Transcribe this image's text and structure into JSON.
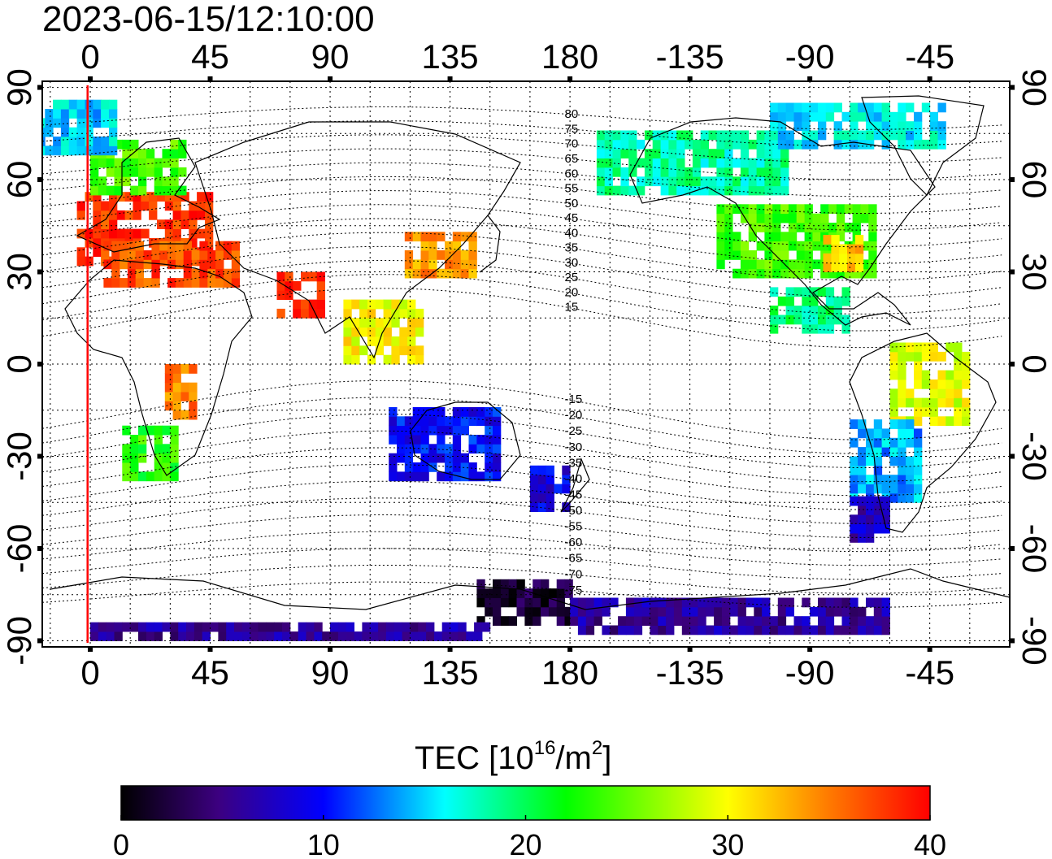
{
  "title": "2023-06-15/12:10:00",
  "map": {
    "lon_labels_top": [
      "0",
      "45",
      "90",
      "135",
      "180",
      "-135",
      "-90",
      "-45"
    ],
    "lon_labels_bottom": [
      "0",
      "45",
      "90",
      "135",
      "180",
      "-135",
      "-90",
      "-45"
    ],
    "lat_labels_left": [
      "90",
      "60",
      "30",
      "0",
      "-30",
      "-60",
      "-90"
    ],
    "lat_labels_right": [
      "90",
      "60",
      "30",
      "0",
      "-30",
      "-60",
      "-90"
    ],
    "lon_tick_values": [
      0,
      45,
      90,
      135,
      180,
      225,
      270,
      315
    ],
    "lat_tick_values": [
      90,
      60,
      30,
      0,
      -30,
      -60,
      -90
    ],
    "lon_range": [
      -18,
      345
    ],
    "lat_range": [
      -92,
      92
    ],
    "grid": true,
    "terminator_lon": -1,
    "terminator_color": "#ff0000",
    "mlat_labels": [
      "80",
      "75",
      "70",
      "65",
      "60",
      "55",
      "50",
      "45",
      "40",
      "35",
      "30",
      "25",
      "20",
      "15",
      "-15",
      "-20",
      "-25",
      "-30",
      "-35",
      "-40",
      "-45",
      "-50",
      "-55",
      "-60",
      "-65",
      "-70",
      "-75"
    ],
    "tec_regions": [
      {
        "name": "europe",
        "lon": [
          -5,
          45
        ],
        "lat": [
          32,
          55
        ],
        "tec": 38
      },
      {
        "name": "north-africa",
        "lon": [
          5,
          55
        ],
        "lat": [
          25,
          38
        ],
        "tec": 37
      },
      {
        "name": "scandinavia",
        "lon": [
          0,
          35
        ],
        "lat": [
          55,
          72
        ],
        "tec": 24
      },
      {
        "name": "greenland-north-atlantic",
        "lon": [
          -20,
          10
        ],
        "lat": [
          68,
          85
        ],
        "tec": 15
      },
      {
        "name": "south-africa",
        "lon": [
          12,
          32
        ],
        "lat": [
          -38,
          -22
        ],
        "tec": 23
      },
      {
        "name": "central-africa",
        "lon": [
          28,
          40
        ],
        "lat": [
          -18,
          0
        ],
        "tec": 35
      },
      {
        "name": "east-asia",
        "lon": [
          118,
          145
        ],
        "lat": [
          28,
          42
        ],
        "tec": 34
      },
      {
        "name": "india",
        "lon": [
          70,
          88
        ],
        "lat": [
          15,
          28
        ],
        "tec": 38
      },
      {
        "name": "southeast-asia",
        "lon": [
          95,
          125
        ],
        "lat": [
          0,
          20
        ],
        "tec": 30
      },
      {
        "name": "australia",
        "lon": [
          112,
          152
        ],
        "lat": [
          -38,
          -15
        ],
        "tec": 10
      },
      {
        "name": "new-zealand",
        "lon": [
          165,
          180
        ],
        "lat": [
          -48,
          -35
        ],
        "tec": 9
      },
      {
        "name": "alaska-canada",
        "lon": [
          190,
          260
        ],
        "lat": [
          55,
          75
        ],
        "tec": 18
      },
      {
        "name": "arctic-canada",
        "lon": [
          255,
          320
        ],
        "lat": [
          70,
          85
        ],
        "tec": 16
      },
      {
        "name": "usa",
        "lon": [
          235,
          295
        ],
        "lat": [
          28,
          50
        ],
        "tec": 24
      },
      {
        "name": "eastern-usa",
        "lon": [
          275,
          290
        ],
        "lat": [
          30,
          40
        ],
        "tec": 32
      },
      {
        "name": "central-america",
        "lon": [
          255,
          285
        ],
        "lat": [
          10,
          25
        ],
        "tec": 19
      },
      {
        "name": "brazil",
        "lon": [
          300,
          330
        ],
        "lat": [
          -20,
          5
        ],
        "tec": 29
      },
      {
        "name": "argentina",
        "lon": [
          285,
          310
        ],
        "lat": [
          -45,
          -20
        ],
        "tec": 14
      },
      {
        "name": "patagonia",
        "lon": [
          285,
          300
        ],
        "lat": [
          -58,
          -45
        ],
        "tec": 7
      },
      {
        "name": "antarctic-pacific",
        "lon": [
          145,
          180
        ],
        "lat": [
          -85,
          -70
        ],
        "tec": 2
      },
      {
        "name": "antarctic-coast",
        "lon": [
          180,
          300
        ],
        "lat": [
          -88,
          -78
        ],
        "tec": 6
      },
      {
        "name": "antarctic-south",
        "lon": [
          0,
          150
        ],
        "lat": [
          -90,
          -85
        ],
        "tec": 6
      }
    ]
  },
  "colorbar": {
    "label": "TEC  [10",
    "label_sup": "16",
    "label_mid": "/m",
    "label_sup2": "2",
    "label_end": "]",
    "ticks": [
      "0",
      "10",
      "20",
      "30",
      "40"
    ],
    "min": 0,
    "max": 40,
    "colors": [
      "#000000",
      "#3c0080",
      "#0000ff",
      "#00ffff",
      "#00ff00",
      "#ffff00",
      "#ff7f00",
      "#ff0000"
    ]
  }
}
